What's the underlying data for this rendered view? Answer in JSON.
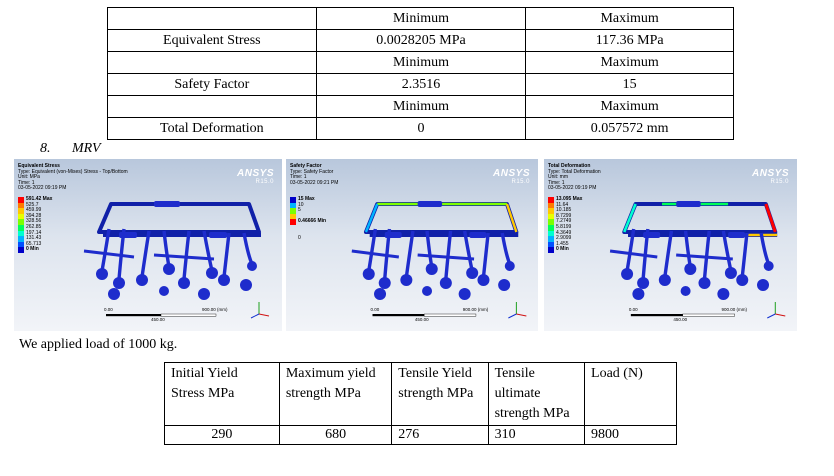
{
  "results_table": {
    "rows": [
      {
        "label": "",
        "min": "Minimum",
        "max": "Maximum",
        "kind": "header"
      },
      {
        "label": "Equivalent Stress",
        "min": "0.0028205 MPa",
        "max": "117.36 MPa",
        "kind": "value"
      },
      {
        "label": "",
        "min": "Minimum",
        "max": "Maximum",
        "kind": "header"
      },
      {
        "label": "Safety Factor",
        "min": "2.3516",
        "max": "15",
        "kind": "value"
      },
      {
        "label": "",
        "min": "Minimum",
        "max": "Maximum",
        "kind": "header"
      },
      {
        "label": "Total Deformation",
        "min": "0",
        "max": "0.057572 mm",
        "kind": "value"
      }
    ]
  },
  "section_heading": {
    "number": "8.",
    "title": "MRV"
  },
  "screenshots": [
    {
      "title": "Equivalent Stress",
      "type_line": "Type: Equivalent (von-Mises) Stress - Top/Bottom",
      "unit_line": "Unit: MPa",
      "time_line": "Time: 1",
      "date_line": "03-05-2022 09:19 PM",
      "brand": "ANSYS",
      "version": "R15.0",
      "legend": [
        "591.42 Max",
        "525.7",
        "459.99",
        "394.28",
        "328.56",
        "262.85",
        "197.14",
        "131.43",
        "65.713",
        "0 Min"
      ],
      "legend_colors": [
        "#ff0000",
        "#ff7a00",
        "#ffc800",
        "#e8ff00",
        "#7cff00",
        "#00ff58",
        "#00ffd0",
        "#00b4ff",
        "#0050ff",
        "#0000c8"
      ],
      "scale_left": "0.00",
      "scale_mid": "450.00",
      "scale_right": "900.00 (mm)"
    },
    {
      "title": "Safety Factor",
      "type_line": "Type: Safety Factor",
      "unit_line": "",
      "time_line": "Time: 1",
      "date_line": "03-05-2022 09:21 PM",
      "brand": "ANSYS",
      "version": "R15.0",
      "legend": [
        "15 Max",
        "10",
        "5",
        "",
        "0.46666 Min",
        "",
        "",
        "0"
      ],
      "legend_colors": [
        "#0000c8",
        "#00b4ff",
        "#7cff00",
        "#ffc800",
        "#ff0000"
      ],
      "scale_left": "0.00",
      "scale_mid": "450.00",
      "scale_right": "900.00 (mm)"
    },
    {
      "title": "Total Deformation",
      "type_line": "Type: Total Deformation",
      "unit_line": "Unit: mm",
      "time_line": "Time: 1",
      "date_line": "03-05-2022 09:19 PM",
      "brand": "ANSYS",
      "version": "R15.0",
      "legend": [
        "13.095 Max",
        "11.64",
        "10.185",
        "8.7299",
        "7.2749",
        "5.8199",
        "4.3649",
        "2.9099",
        "1.455",
        "0 Min"
      ],
      "legend_colors": [
        "#ff0000",
        "#ff7a00",
        "#ffc800",
        "#e8ff00",
        "#7cff00",
        "#00ff58",
        "#00ffd0",
        "#00b4ff",
        "#0050ff",
        "#0000c8"
      ],
      "scale_left": "0.00",
      "scale_mid": "450.00",
      "scale_right": "900.00 (mm)"
    }
  ],
  "load_text": "We applied load of 1000 kg.",
  "material_table": {
    "headers": [
      "Initial Yield Stress MPa",
      "Maximum yield strength MPa",
      "Tensile Yield strength MPa",
      "Tensile ultimate strength MPa",
      "Load (N)"
    ],
    "values": [
      "290",
      "680",
      "276",
      "310",
      "9800"
    ]
  },
  "colors": {
    "mesh_blue": "#1e2ccc",
    "pipe_dark": "#1020a8"
  }
}
